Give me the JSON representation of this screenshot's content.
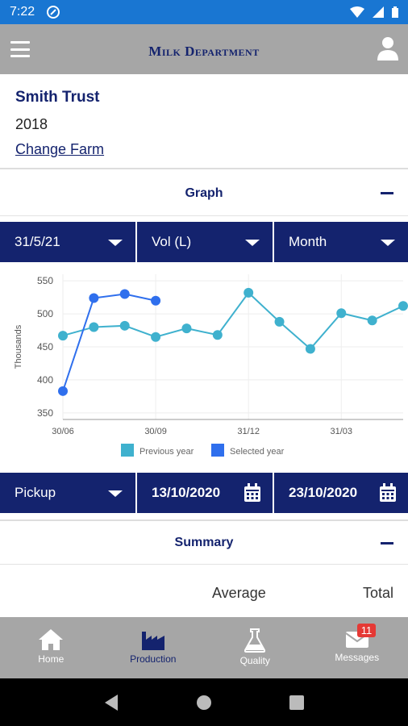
{
  "status_bar": {
    "time": "7:22"
  },
  "app_bar": {
    "title": "Milk Department",
    "menu_icon": "hamburger-icon",
    "user_icon": "user-icon"
  },
  "farm": {
    "name": "Smith Trust",
    "year": "2018",
    "change_link": "Change Farm"
  },
  "graph_section": {
    "label": "Graph"
  },
  "graph_filters": {
    "date": "31/5/21",
    "measure": "Vol (L)",
    "period": "Month"
  },
  "chart_data": {
    "type": "line",
    "ylabel": "Thousands",
    "ylim": [
      340,
      560
    ],
    "yticks": [
      "550",
      "500",
      "450",
      "400",
      "350"
    ],
    "xticks": [
      "30/06",
      "30/09",
      "31/12",
      "31/03"
    ],
    "grid": true,
    "legend_position": "bottom",
    "series": [
      {
        "name": "Previous year",
        "color": "#3fb1ce",
        "x": [
          "30/06",
          "31/07",
          "31/08",
          "30/09",
          "31/10",
          "30/11",
          "31/12",
          "31/01",
          "28/02",
          "31/03",
          "30/04",
          "31/05"
        ],
        "values": [
          467,
          480,
          482,
          465,
          478,
          468,
          532,
          488,
          447,
          501,
          490,
          512
        ]
      },
      {
        "name": "Selected year",
        "color": "#2f6fed",
        "x": [
          "30/06",
          "31/07",
          "31/08",
          "30/09"
        ],
        "values": [
          383,
          524,
          530,
          520
        ]
      }
    ]
  },
  "pickup_filters": {
    "type": "Pickup",
    "from": "13/10/2020",
    "to": "23/10/2020"
  },
  "summary_section": {
    "label": "Summary",
    "col_average": "Average",
    "col_total": "Total"
  },
  "bottom_nav": {
    "home": "Home",
    "production": "Production",
    "quality": "Quality",
    "messages": "Messages",
    "messages_badge": "11"
  },
  "colors": {
    "primary": "#14236e",
    "appbar": "#a6a6a6",
    "statusbar": "#1976d2"
  }
}
